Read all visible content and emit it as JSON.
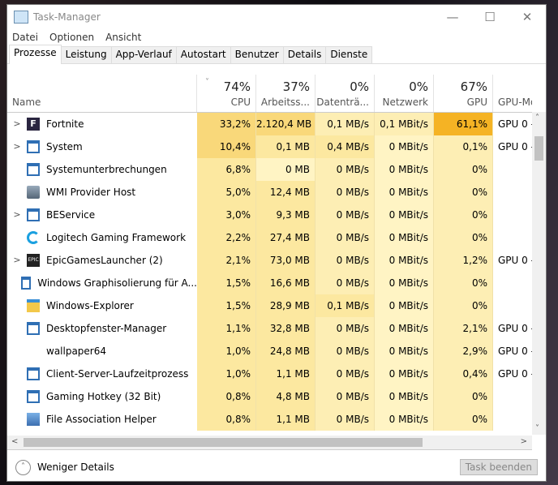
{
  "window": {
    "title": "Task-Manager",
    "minimize": "—",
    "maximize": "☐",
    "close": "✕"
  },
  "menu": [
    "Datei",
    "Optionen",
    "Ansicht"
  ],
  "tabs": [
    "Prozesse",
    "Leistung",
    "App-Verlauf",
    "Autostart",
    "Benutzer",
    "Details",
    "Dienste"
  ],
  "columns": [
    {
      "label": "Name",
      "pct": ""
    },
    {
      "label": "CPU",
      "pct": "74%"
    },
    {
      "label": "Arbeitss...",
      "pct": "37%"
    },
    {
      "label": "Datenträ...",
      "pct": "0%"
    },
    {
      "label": "Netzwerk",
      "pct": "0%"
    },
    {
      "label": "GPU",
      "pct": "67%"
    },
    {
      "label": "GPU-Modu",
      "pct": ""
    }
  ],
  "sort_indicator": "˅",
  "rows": [
    {
      "name": "Fortnite",
      "expand": true,
      "icon": "fortnite-icon",
      "cpu": "33,2%",
      "mem": "2.120,4 MB",
      "disk": "0,1 MB/s",
      "net": "0,1 MBit/s",
      "gpu": "61,1%",
      "gpu_mod": "GPU 0 -",
      "heat": [
        3,
        3,
        1,
        1,
        4
      ]
    },
    {
      "name": "System",
      "expand": true,
      "icon": "window-icon",
      "cpu": "10,4%",
      "mem": "0,1 MB",
      "disk": "0,4 MB/s",
      "net": "0 MBit/s",
      "gpu": "0,1%",
      "gpu_mod": "GPU 0 -",
      "heat": [
        3,
        2,
        2,
        0,
        1
      ]
    },
    {
      "name": "Systemunterbrechungen",
      "expand": false,
      "icon": "window-icon",
      "cpu": "6,8%",
      "mem": "0 MB",
      "disk": "0 MB/s",
      "net": "0 MBit/s",
      "gpu": "0%",
      "gpu_mod": "",
      "heat": [
        2,
        0,
        1,
        0,
        1
      ]
    },
    {
      "name": "WMI Provider Host",
      "expand": false,
      "icon": "wmi-icon",
      "cpu": "5,0%",
      "mem": "12,4 MB",
      "disk": "0 MB/s",
      "net": "0 MBit/s",
      "gpu": "0%",
      "gpu_mod": "",
      "heat": [
        2,
        2,
        1,
        0,
        1
      ]
    },
    {
      "name": "BEService",
      "expand": true,
      "icon": "window-icon",
      "cpu": "3,0%",
      "mem": "9,3 MB",
      "disk": "0 MB/s",
      "net": "0 MBit/s",
      "gpu": "0%",
      "gpu_mod": "",
      "heat": [
        2,
        2,
        1,
        0,
        1
      ]
    },
    {
      "name": "Logitech Gaming Framework",
      "expand": false,
      "icon": "logitech-icon",
      "cpu": "2,2%",
      "mem": "27,4 MB",
      "disk": "0 MB/s",
      "net": "0 MBit/s",
      "gpu": "0%",
      "gpu_mod": "",
      "heat": [
        2,
        2,
        1,
        0,
        1
      ]
    },
    {
      "name": "EpicGamesLauncher (2)",
      "expand": true,
      "icon": "epic-icon",
      "cpu": "2,1%",
      "mem": "73,0 MB",
      "disk": "0 MB/s",
      "net": "0 MBit/s",
      "gpu": "1,2%",
      "gpu_mod": "GPU 0 -",
      "heat": [
        2,
        2,
        1,
        0,
        1
      ]
    },
    {
      "name": "Windows Graphisolierung für A...",
      "expand": false,
      "icon": "window-icon",
      "cpu": "1,5%",
      "mem": "16,6 MB",
      "disk": "0 MB/s",
      "net": "0 MBit/s",
      "gpu": "0%",
      "gpu_mod": "",
      "heat": [
        2,
        2,
        1,
        0,
        1
      ]
    },
    {
      "name": "Windows-Explorer",
      "expand": false,
      "icon": "folder-icon",
      "cpu": "1,5%",
      "mem": "28,9 MB",
      "disk": "0,1 MB/s",
      "net": "0 MBit/s",
      "gpu": "0%",
      "gpu_mod": "",
      "heat": [
        2,
        2,
        2,
        0,
        1
      ]
    },
    {
      "name": "Desktopfenster-Manager",
      "expand": false,
      "icon": "window-icon",
      "cpu": "1,1%",
      "mem": "32,8 MB",
      "disk": "0 MB/s",
      "net": "0 MBit/s",
      "gpu": "2,1%",
      "gpu_mod": "GPU 0 -",
      "heat": [
        2,
        2,
        1,
        0,
        1
      ]
    },
    {
      "name": "wallpaper64",
      "expand": false,
      "icon": "none",
      "cpu": "1,0%",
      "mem": "24,8 MB",
      "disk": "0 MB/s",
      "net": "0 MBit/s",
      "gpu": "2,9%",
      "gpu_mod": "GPU 0 -",
      "heat": [
        2,
        2,
        1,
        0,
        1
      ]
    },
    {
      "name": "Client-Server-Laufzeitprozess",
      "expand": false,
      "icon": "window-icon",
      "cpu": "1,0%",
      "mem": "1,1 MB",
      "disk": "0 MB/s",
      "net": "0 MBit/s",
      "gpu": "0,4%",
      "gpu_mod": "GPU 0 -",
      "heat": [
        2,
        2,
        1,
        0,
        1
      ]
    },
    {
      "name": "Gaming Hotkey (32 Bit)",
      "expand": false,
      "icon": "window-icon",
      "cpu": "0,8%",
      "mem": "4,8 MB",
      "disk": "0 MB/s",
      "net": "0 MBit/s",
      "gpu": "0%",
      "gpu_mod": "",
      "heat": [
        2,
        2,
        1,
        0,
        1
      ]
    },
    {
      "name": "File Association Helper",
      "expand": false,
      "icon": "app-icon",
      "cpu": "0,8%",
      "mem": "1,1 MB",
      "disk": "0 MB/s",
      "net": "0 MBit/s",
      "gpu": "0%",
      "gpu_mod": "",
      "heat": [
        2,
        2,
        1,
        0,
        1
      ]
    }
  ],
  "footer": {
    "less_details": "Weniger Details",
    "end_task": "Task beenden"
  }
}
